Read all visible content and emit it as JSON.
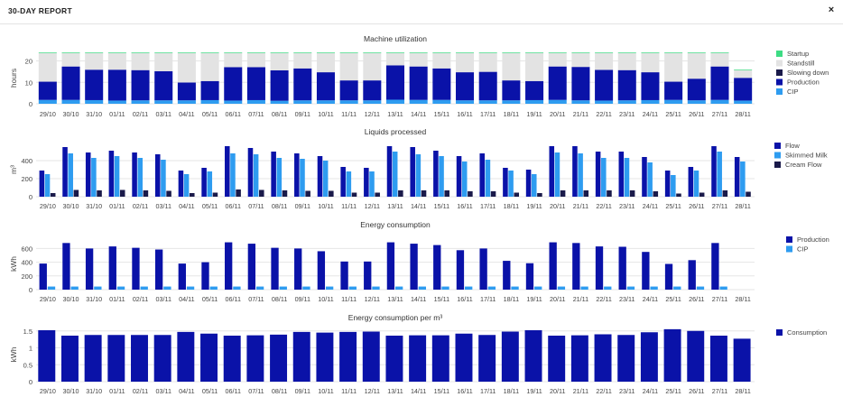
{
  "header": {
    "title": "30-DAY REPORT",
    "close_label": "×"
  },
  "chart_data": [
    {
      "type": "bar",
      "stacked": true,
      "title": "Machine utilization",
      "ylabel": "hours",
      "ylim": [
        0,
        24
      ],
      "yticks": [
        "0",
        "10",
        "20"
      ],
      "ytick_values": [
        0,
        10,
        20
      ],
      "grid": true,
      "legend": "right",
      "categories": [
        "29/10",
        "30/10",
        "31/10",
        "01/11",
        "02/11",
        "03/11",
        "04/11",
        "05/11",
        "06/11",
        "07/11",
        "08/11",
        "09/11",
        "10/11",
        "11/11",
        "12/11",
        "13/11",
        "14/11",
        "15/11",
        "16/11",
        "17/11",
        "18/11",
        "19/11",
        "20/11",
        "21/11",
        "22/11",
        "23/11",
        "24/11",
        "25/11",
        "26/11",
        "27/11",
        "28/11"
      ],
      "series": [
        {
          "name": "Startup",
          "color": "#3ddc84",
          "values": [
            0.3,
            0.3,
            0.3,
            0.3,
            0.3,
            0.3,
            0.3,
            0.3,
            0.3,
            0.3,
            0.3,
            0.3,
            0.3,
            0.3,
            0.3,
            0.3,
            0.3,
            0.3,
            0.3,
            0.3,
            0.3,
            0.3,
            0.3,
            0.3,
            0.3,
            0.3,
            0.3,
            0.3,
            0.3,
            0.3,
            0.3
          ]
        },
        {
          "name": "Standstill",
          "color": "#e3e3e3",
          "values": [
            13.4,
            6.3,
            7.8,
            7.8,
            8,
            8.5,
            13.8,
            13.1,
            6.6,
            6.6,
            8.1,
            7.2,
            9,
            12.8,
            12.8,
            5.8,
            6.3,
            7.2,
            9,
            8.8,
            12.8,
            13.1,
            6.3,
            6.5,
            7.9,
            8,
            9,
            13.4,
            12,
            6.3,
            3.6
          ]
        },
        {
          "name": "Slowing down",
          "color": "#1a1a4a",
          "values": [
            0,
            0,
            0,
            0,
            0,
            0,
            0,
            0,
            0,
            0,
            0,
            0,
            0,
            0,
            0,
            0,
            0,
            0,
            0,
            0,
            0,
            0,
            0,
            0,
            0,
            0,
            0,
            0,
            0,
            0,
            0
          ]
        },
        {
          "name": "Production",
          "color": "#0a12a8",
          "values": [
            8.5,
            15.6,
            14.2,
            14.4,
            14.1,
            13.6,
            8.3,
            8.9,
            15.6,
            15.4,
            14.2,
            14.9,
            13.1,
            9.3,
            9.3,
            16.0,
            15.6,
            14.7,
            13.1,
            13.3,
            9.3,
            8.9,
            15.6,
            15.6,
            14.3,
            14.1,
            13.0,
            8.5,
            10.1,
            15.6,
            10.6
          ]
        },
        {
          "name": "CIP",
          "color": "#2e9cf0",
          "values": [
            1.8,
            1.8,
            1.7,
            1.5,
            1.6,
            1.6,
            1.6,
            1.7,
            1.5,
            1.7,
            1.4,
            1.6,
            1.6,
            1.6,
            1.6,
            1.9,
            1.8,
            1.8,
            1.6,
            1.6,
            1.6,
            1.7,
            1.8,
            1.6,
            1.5,
            1.6,
            1.7,
            1.8,
            1.6,
            1.8,
            1.5
          ]
        }
      ]
    },
    {
      "type": "bar",
      "stacked": false,
      "title": "Liquids processed",
      "ylabel": "m³",
      "ylim": [
        0,
        600
      ],
      "yticks": [
        "0",
        "200",
        "400"
      ],
      "ytick_values": [
        0,
        200,
        400
      ],
      "grid": true,
      "legend": "right",
      "categories": [
        "29/10",
        "30/10",
        "31/10",
        "01/11",
        "02/11",
        "03/11",
        "04/11",
        "05/11",
        "06/11",
        "07/11",
        "08/11",
        "09/11",
        "10/11",
        "11/11",
        "12/11",
        "13/11",
        "14/11",
        "15/11",
        "16/11",
        "17/11",
        "18/11",
        "19/11",
        "20/11",
        "21/11",
        "22/11",
        "23/11",
        "24/11",
        "25/11",
        "26/11",
        "27/11",
        "28/11"
      ],
      "series": [
        {
          "name": "Flow",
          "color": "#0a12a8",
          "values": [
            290,
            550,
            490,
            510,
            490,
            470,
            290,
            320,
            560,
            540,
            500,
            480,
            450,
            330,
            320,
            560,
            550,
            510,
            450,
            480,
            320,
            300,
            560,
            560,
            500,
            500,
            440,
            290,
            330,
            560,
            440
          ]
        },
        {
          "name": "Skimmed Milk",
          "color": "#2e9cf0",
          "values": [
            250,
            480,
            430,
            450,
            430,
            410,
            250,
            280,
            480,
            470,
            430,
            420,
            400,
            280,
            280,
            500,
            470,
            450,
            390,
            410,
            290,
            250,
            490,
            480,
            430,
            430,
            380,
            240,
            290,
            500,
            390
          ]
        },
        {
          "name": "Cream Flow",
          "color": "#1a1a4a",
          "values": [
            40,
            75,
            70,
            75,
            70,
            65,
            40,
            45,
            80,
            75,
            70,
            65,
            65,
            45,
            45,
            70,
            70,
            70,
            60,
            60,
            45,
            40,
            70,
            70,
            70,
            70,
            60,
            35,
            45,
            70,
            55
          ]
        }
      ]
    },
    {
      "type": "bar",
      "stacked": false,
      "title": "Energy consumption",
      "ylabel": "kWh",
      "ylim": [
        0,
        750
      ],
      "yticks": [
        "0",
        "200",
        "400",
        "600"
      ],
      "ytick_values": [
        0,
        200,
        400,
        600
      ],
      "grid": true,
      "legend": "right",
      "categories": [
        "29/10",
        "30/10",
        "31/10",
        "01/11",
        "02/11",
        "03/11",
        "04/11",
        "05/11",
        "06/11",
        "07/11",
        "08/11",
        "09/11",
        "10/11",
        "11/11",
        "12/11",
        "13/11",
        "14/11",
        "15/11",
        "16/11",
        "17/11",
        "18/11",
        "19/11",
        "20/11",
        "21/11",
        "22/11",
        "23/11",
        "24/11",
        "25/11",
        "26/11",
        "27/11",
        "28/11"
      ],
      "series": [
        {
          "name": "Production",
          "color": "#0a12a8",
          "values": [
            380,
            680,
            600,
            630,
            610,
            585,
            380,
            400,
            690,
            670,
            610,
            600,
            560,
            410,
            410,
            690,
            670,
            650,
            575,
            600,
            420,
            385,
            690,
            680,
            630,
            625,
            550,
            375,
            430,
            680,
            0
          ]
        },
        {
          "name": "CIP",
          "color": "#2e9cf0",
          "values": [
            45,
            45,
            45,
            45,
            45,
            45,
            45,
            45,
            45,
            45,
            45,
            45,
            45,
            45,
            45,
            45,
            45,
            45,
            45,
            45,
            45,
            45,
            45,
            45,
            45,
            45,
            45,
            45,
            45,
            45,
            0
          ]
        }
      ]
    },
    {
      "type": "bar",
      "stacked": false,
      "title": "Energy consumption per m³",
      "ylabel": "kWh",
      "ylim": [
        0,
        1.6
      ],
      "yticks": [
        "0",
        "0.5",
        "1",
        "1.5"
      ],
      "ytick_values": [
        0,
        0.5,
        1,
        1.5
      ],
      "grid": true,
      "legend": "right",
      "categories": [
        "29/10",
        "30/10",
        "31/10",
        "01/11",
        "02/11",
        "03/11",
        "04/11",
        "05/11",
        "06/11",
        "07/11",
        "08/11",
        "09/11",
        "10/11",
        "11/11",
        "12/11",
        "13/11",
        "14/11",
        "15/11",
        "16/11",
        "17/11",
        "18/11",
        "19/11",
        "20/11",
        "21/11",
        "22/11",
        "23/11",
        "24/11",
        "25/11",
        "26/11",
        "27/11",
        "28/11"
      ],
      "series": [
        {
          "name": "Consumption",
          "color": "#0a12a8",
          "values": [
            1.52,
            1.36,
            1.38,
            1.38,
            1.38,
            1.38,
            1.47,
            1.42,
            1.36,
            1.37,
            1.39,
            1.47,
            1.45,
            1.47,
            1.48,
            1.36,
            1.37,
            1.37,
            1.42,
            1.38,
            1.48,
            1.52,
            1.36,
            1.37,
            1.4,
            1.38,
            1.46,
            1.55,
            1.5,
            1.36,
            1.27
          ]
        }
      ]
    }
  ]
}
